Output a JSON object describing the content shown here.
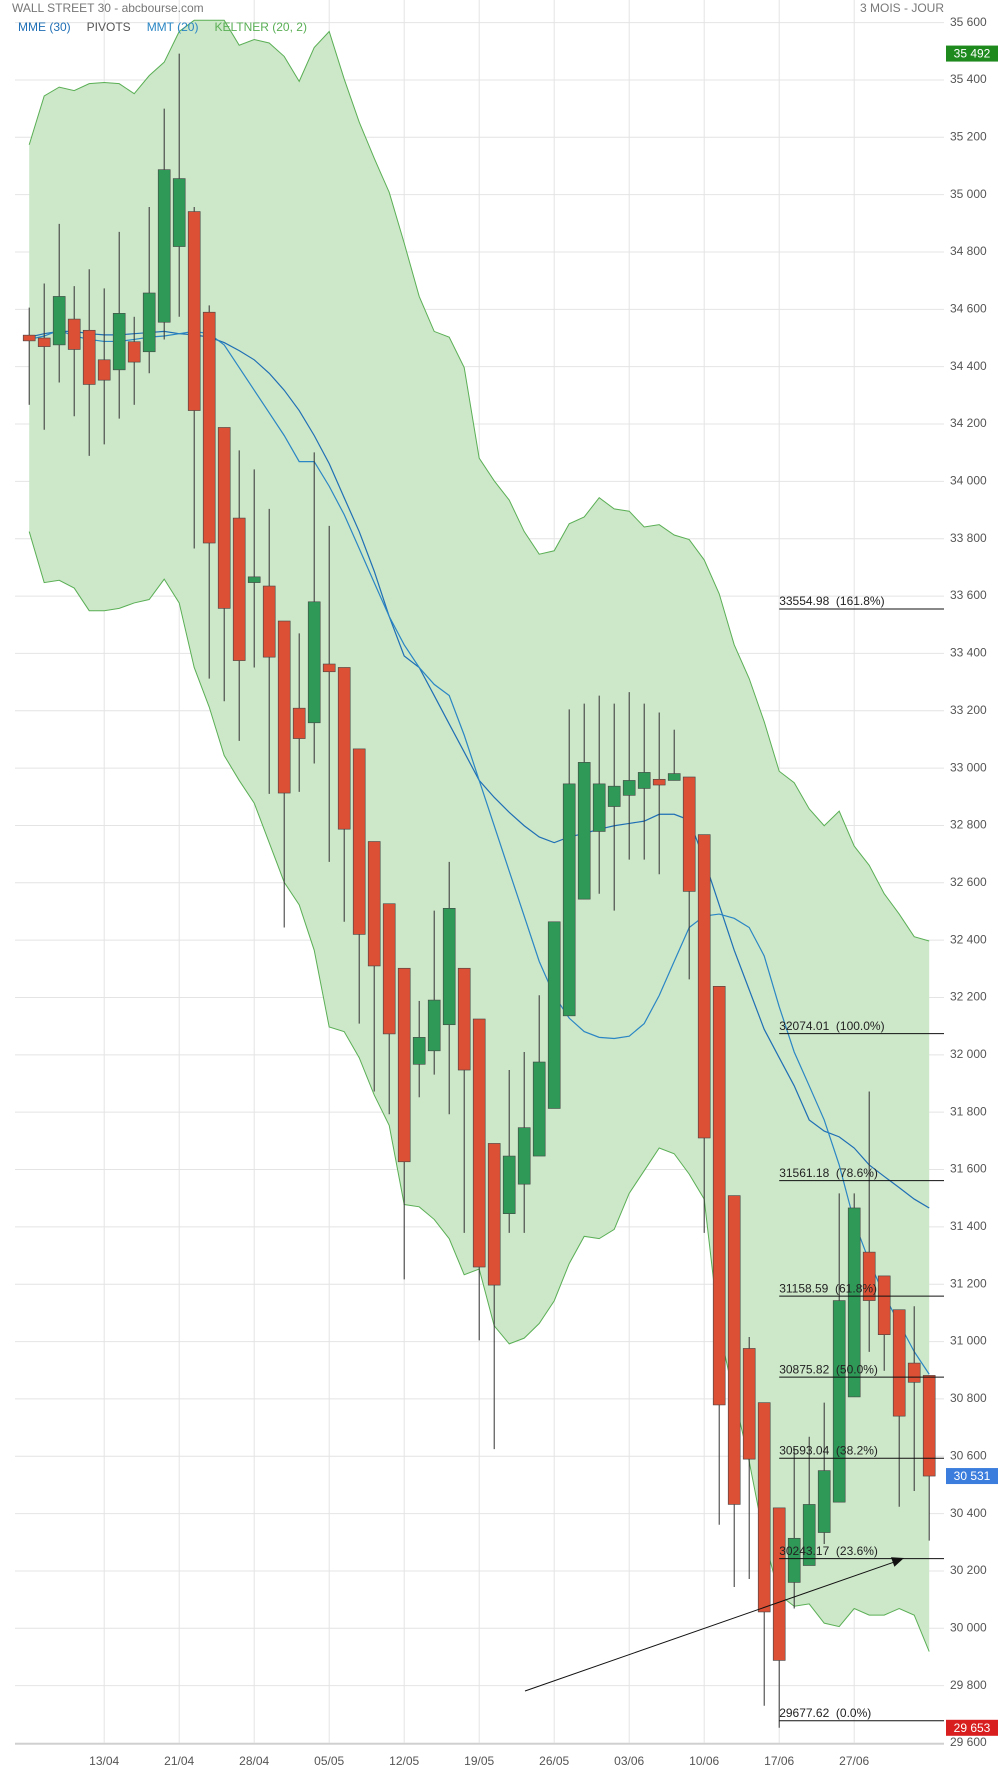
{
  "chart_data": {
    "type": "candlestick",
    "title": "WALL STREET 30 - abcbourse.com",
    "period": "3 MOIS - JOUR",
    "pivots_label": "PIVOTS",
    "grid": true,
    "up_color": "#2f9a58",
    "down_color": "#dc5136",
    "categories": [
      null,
      null,
      null,
      null,
      null,
      "13/04",
      null,
      null,
      null,
      null,
      "21/04",
      null,
      null,
      null,
      null,
      "28/04",
      null,
      null,
      null,
      null,
      "05/05",
      null,
      null,
      null,
      null,
      "12/05",
      null,
      null,
      null,
      null,
      "19/05",
      null,
      null,
      null,
      null,
      "26/05",
      null,
      null,
      null,
      null,
      "03/06",
      null,
      null,
      null,
      null,
      "10/06",
      null,
      null,
      null,
      null,
      "17/06",
      null,
      null,
      null,
      null,
      "27/06",
      null,
      null,
      null,
      null,
      null
    ],
    "open": [
      34510,
      34500,
      34476,
      34566,
      34527,
      34424,
      34389,
      34487,
      34452,
      34555,
      34819,
      34941,
      34590,
      34188,
      33872,
      33647,
      33635,
      33513,
      33209,
      33158,
      33363,
      33351,
      33067,
      32744,
      32527,
      32302,
      31967,
      32014,
      32105,
      32302,
      32125,
      31691,
      31446,
      31549,
      31647,
      31813,
      32136,
      32543,
      32779,
      32866,
      32905,
      32929,
      32961,
      32957,
      32969,
      32768,
      32239,
      31509,
      30976,
      30787,
      30420,
      30160,
      30219,
      30334,
      30440,
      30807,
      31312,
      31229,
      31111,
      30925,
      30882
    ],
    "high": [
      34606,
      34690,
      34898,
      34681,
      34740,
      34673,
      34870,
      34574,
      34957,
      35300,
      35492,
      34957,
      34614,
      34188,
      34108,
      34042,
      33904,
      33513,
      33470,
      34101,
      33845,
      33351,
      33067,
      32744,
      32527,
      32302,
      32188,
      32503,
      32673,
      32302,
      32125,
      31691,
      31947,
      32010,
      32208,
      32464,
      33205,
      33225,
      33253,
      33225,
      33265,
      33225,
      33194,
      33134,
      32969,
      32768,
      32239,
      31509,
      31016,
      30787,
      30420,
      30629,
      30668,
      30787,
      31517,
      31517,
      31872,
      31229,
      31111,
      31123,
      30882
    ],
    "low": [
      34267,
      34180,
      34345,
      34227,
      34089,
      34129,
      34219,
      34267,
      34377,
      34495,
      34574,
      33766,
      33312,
      33233,
      33095,
      33351,
      32910,
      32444,
      32917,
      33016,
      32673,
      32464,
      32109,
      31872,
      31793,
      31217,
      31852,
      31931,
      31793,
      31379,
      31004,
      30625,
      31379,
      31379,
      31647,
      31813,
      32136,
      32543,
      32562,
      32503,
      32681,
      32681,
      32630,
      32957,
      32263,
      31379,
      30361,
      30144,
      30172,
      29730,
      29653,
      30069,
      30219,
      30294,
      30440,
      30807,
      30964,
      30898,
      30424,
      30479,
      30306
    ],
    "close": [
      34490,
      34470,
      34645,
      34460,
      34338,
      34353,
      34586,
      34416,
      34657,
      35087,
      35056,
      34247,
      33785,
      33557,
      33375,
      33667,
      33387,
      32913,
      33103,
      33580,
      33336,
      32787,
      32420,
      32310,
      32073,
      31627,
      32061,
      32191,
      32511,
      31947,
      31260,
      31197,
      31647,
      31746,
      31975,
      32464,
      32945,
      33020,
      32945,
      32937,
      32957,
      32985,
      32941,
      32981,
      32570,
      31710,
      30779,
      30432,
      30590,
      30057,
      29888,
      30314,
      30432,
      30550,
      31143,
      31466,
      31143,
      31024,
      30740,
      30858,
      30531
    ],
    "overlays": [
      {
        "name": "MME (30)",
        "color": "#1f6fb5",
        "values": [
          34503,
          34515,
          34523,
          34523,
          34515,
          34511,
          34511,
          34515,
          34519,
          34523,
          34515,
          34511,
          34503,
          34484,
          34456,
          34424,
          34377,
          34318,
          34247,
          34160,
          34062,
          33943,
          33825,
          33687,
          33529,
          33391,
          33351,
          33253,
          33154,
          33056,
          32957,
          32898,
          32846,
          32799,
          32760,
          32740,
          32760,
          32772,
          32787,
          32799,
          32807,
          32815,
          32839,
          32839,
          32819,
          32681,
          32523,
          32365,
          32227,
          32089,
          31990,
          31892,
          31773,
          31734,
          31714,
          31675,
          31616,
          31576,
          31537,
          31497,
          31466
        ]
      },
      {
        "name": "MMT (20)",
        "color": "#2a86c4",
        "values": [
          34495,
          34507,
          34527,
          34507,
          34495,
          34488,
          34488,
          34495,
          34503,
          34507,
          34515,
          34523,
          34515,
          34476,
          34397,
          34318,
          34239,
          34160,
          34069,
          34069,
          33983,
          33884,
          33766,
          33647,
          33529,
          33430,
          33351,
          33292,
          33253,
          33115,
          32957,
          32799,
          32641,
          32484,
          32326,
          32207,
          32128,
          32081,
          32061,
          32057,
          32065,
          32109,
          32207,
          32326,
          32444,
          32484,
          32491,
          32476,
          32444,
          32345,
          32168,
          32010,
          31892,
          31773,
          31616,
          31418,
          31280,
          31162,
          31063,
          30965,
          30886
        ]
      }
    ],
    "band": {
      "name": "KELTNER (20, 2)",
      "color": "#5aaf55",
      "fill": "#cde7c9",
      "upper": [
        35174,
        35344,
        35375,
        35363,
        35387,
        35391,
        35387,
        35352,
        35415,
        35462,
        35569,
        35608,
        35608,
        35608,
        35521,
        35541,
        35529,
        35482,
        35395,
        35513,
        35569,
        35403,
        35253,
        35127,
        35008,
        34831,
        34645,
        34523,
        34503,
        34397,
        34081,
        34002,
        33935,
        33825,
        33746,
        33758,
        33852,
        33876,
        33943,
        33904,
        33896,
        33841,
        33849,
        33813,
        33797,
        33726,
        33608,
        33430,
        33312,
        33162,
        32989,
        32949,
        32858,
        32799,
        32850,
        32728,
        32661,
        32562,
        32491,
        32412,
        32397
      ],
      "lower": [
        33825,
        33647,
        33655,
        33628,
        33549,
        33549,
        33557,
        33576,
        33588,
        33659,
        33576,
        33351,
        33213,
        33044,
        32957,
        32878,
        32740,
        32602,
        32523,
        32365,
        32097,
        32081,
        31990,
        31860,
        31754,
        31478,
        31470,
        31426,
        31359,
        31233,
        31253,
        31055,
        30992,
        31012,
        31063,
        31142,
        31272,
        31367,
        31359,
        31391,
        31517,
        31596,
        31675,
        31655,
        31584,
        31497,
        31044,
        30807,
        30582,
        30314,
        30117,
        30077,
        30085,
        30018,
        30006,
        30069,
        30046,
        30046,
        30069,
        30046,
        29919
      ]
    },
    "fib_start_index": 50,
    "fib_levels": [
      {
        "value": 33554.98,
        "label": "33554.98  (161.8%)"
      },
      {
        "value": 32074.01,
        "label": "32074.01  (100.0%)"
      },
      {
        "value": 31561.18,
        "label": "31561.18  (78.6%)"
      },
      {
        "value": 31158.59,
        "label": "31158.59  (61.8%)"
      },
      {
        "value": 30875.82,
        "label": "30875.82  (50.0%)"
      },
      {
        "value": 30593.04,
        "label": "30593.04  (38.2%)"
      },
      {
        "value": 30243.17,
        "label": "30243.17  (23.6%)"
      },
      {
        "value": 29677.62,
        "label": "29677.62  (0.0%)"
      }
    ],
    "price_markers": [
      {
        "value": 35492,
        "label": "35 492",
        "color": "#1e8a1e"
      },
      {
        "value": 30531,
        "label": "30 531",
        "color": "#3b7ddd"
      },
      {
        "value": 29653,
        "label": "29 653",
        "color": "#d81e1e"
      }
    ],
    "ylim": [
      29600,
      35600
    ],
    "yticks": [
      {
        "value": 29600,
        "label": "29 600"
      },
      {
        "value": 29800,
        "label": "29 800"
      },
      {
        "value": 30000,
        "label": "30 000"
      },
      {
        "value": 30200,
        "label": "30 200"
      },
      {
        "value": 30400,
        "label": "30 400"
      },
      {
        "value": 30600,
        "label": "30 600"
      },
      {
        "value": 30800,
        "label": "30 800"
      },
      {
        "value": 31000,
        "label": "31 000"
      },
      {
        "value": 31200,
        "label": "31 200"
      },
      {
        "value": 31400,
        "label": "31 400"
      },
      {
        "value": 31600,
        "label": "31 600"
      },
      {
        "value": 31800,
        "label": "31 800"
      },
      {
        "value": 32000,
        "label": "32 000"
      },
      {
        "value": 32200,
        "label": "32 200"
      },
      {
        "value": 32400,
        "label": "32 400"
      },
      {
        "value": 32600,
        "label": "32 600"
      },
      {
        "value": 32800,
        "label": "32 800"
      },
      {
        "value": 33000,
        "label": "33 000"
      },
      {
        "value": 33200,
        "label": "33 200"
      },
      {
        "value": 33400,
        "label": "33 400"
      },
      {
        "value": 33600,
        "label": "33 600"
      },
      {
        "value": 33800,
        "label": "33 800"
      },
      {
        "value": 34000,
        "label": "34 000"
      },
      {
        "value": 34200,
        "label": "34 200"
      },
      {
        "value": 34400,
        "label": "34 400"
      },
      {
        "value": 34600,
        "label": "34 600"
      },
      {
        "value": 34800,
        "label": "34 800"
      },
      {
        "value": 35000,
        "label": "35 000"
      },
      {
        "value": 35200,
        "label": "35 200"
      },
      {
        "value": 35400,
        "label": "35 400"
      },
      {
        "value": 35600,
        "label": "35 600"
      }
    ]
  }
}
